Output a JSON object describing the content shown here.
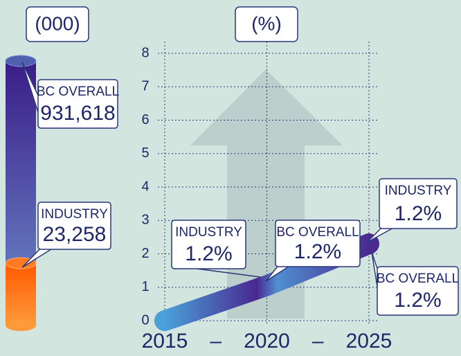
{
  "chart_data": [
    {
      "type": "cylinder",
      "title": "(000)",
      "series": [
        {
          "name": "BC OVERALL",
          "values": [
            931618
          ],
          "value_labels": [
            "931,618"
          ],
          "color": "#3f2389"
        },
        {
          "name": "INDUSTRY",
          "values": [
            23258
          ],
          "value_labels": [
            "23,258"
          ],
          "color": "#ff6a10"
        }
      ]
    },
    {
      "type": "line",
      "title": "(%)",
      "x": [
        2015,
        2020,
        2025
      ],
      "xlim": [
        2015,
        2025
      ],
      "xticks": [
        2015,
        2020,
        2025
      ],
      "x_separator": "–",
      "ylim": [
        0,
        8
      ],
      "yticks": [
        0,
        1,
        2,
        3,
        4,
        5,
        6,
        7,
        8
      ],
      "grid": true,
      "series": [
        {
          "values": [
            0,
            1.05,
            2.3
          ],
          "color": "#4a2a90"
        }
      ],
      "annotations": [
        {
          "name": "INDUSTRY",
          "label": "1.2%",
          "x": 2020
        },
        {
          "name": "BC OVERALL",
          "label": "1.2%",
          "x": 2020
        },
        {
          "name": "INDUSTRY",
          "label": "1.2%",
          "x": 2025
        },
        {
          "name": "BC OVERALL",
          "label": "1.2%",
          "x": 2025
        }
      ]
    }
  ]
}
